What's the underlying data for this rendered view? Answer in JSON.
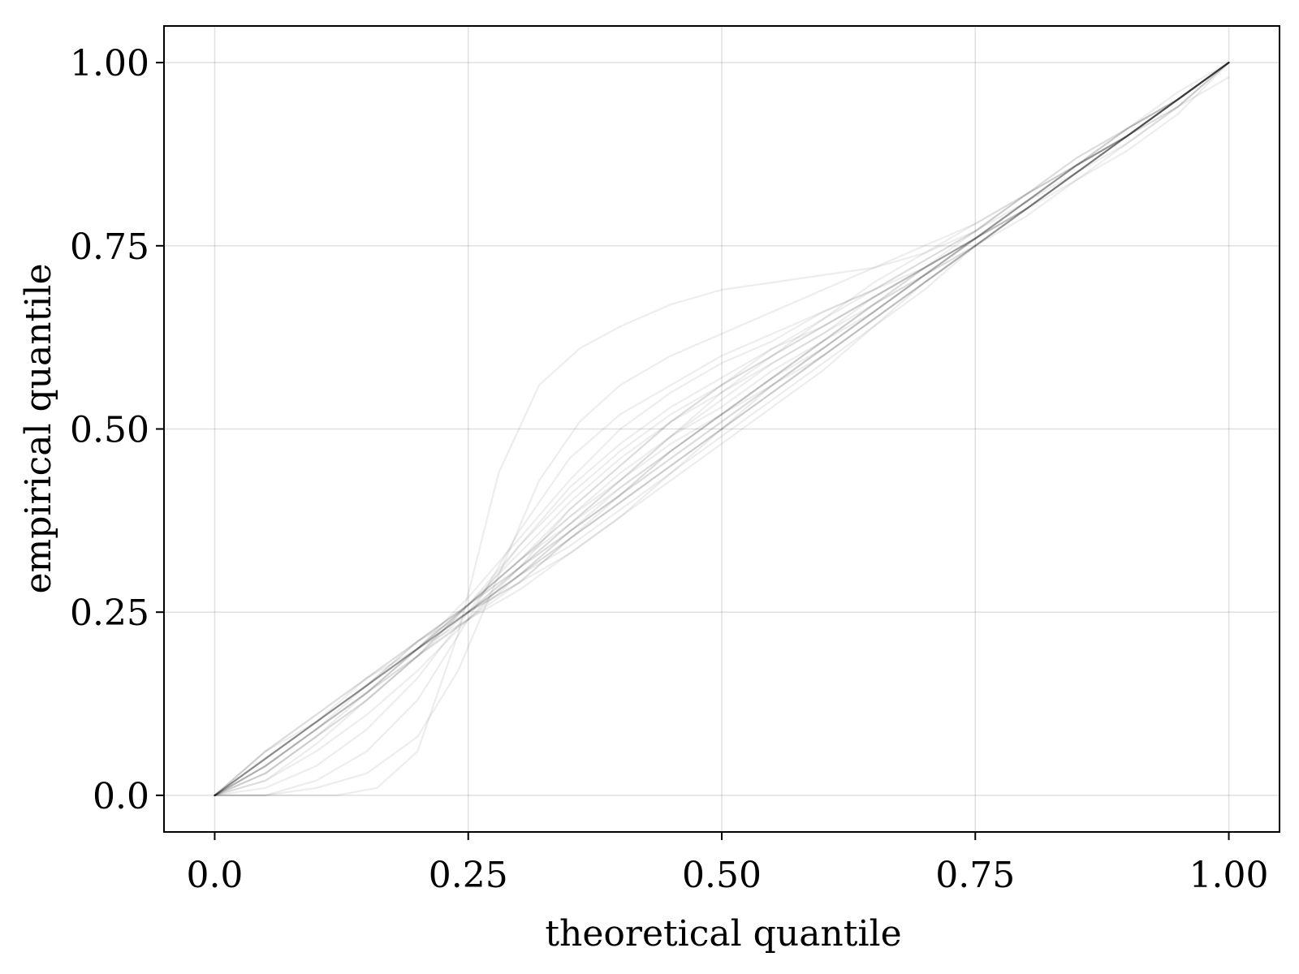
{
  "chart_data": {
    "type": "line",
    "title": "",
    "xlabel": "theoretical quantile",
    "ylabel": "empirical quantile",
    "xlim": [
      -0.05,
      1.05
    ],
    "ylim": [
      -0.05,
      1.05
    ],
    "x_ticks": [
      0.0,
      0.25,
      0.5,
      0.75,
      1.0
    ],
    "x_tick_labels": [
      "0.0",
      "0.25",
      "0.50",
      "0.75",
      "1.00"
    ],
    "y_ticks": [
      0.0,
      0.25,
      0.5,
      0.75,
      1.0
    ],
    "y_tick_labels": [
      "0.0",
      "0.25",
      "0.50",
      "0.75",
      "1.00"
    ],
    "grid": true,
    "line_color": "#000000",
    "line_opacity": 0.07,
    "series": [
      {
        "x": [
          0,
          0.05,
          0.1,
          0.15,
          0.2,
          0.25,
          0.3,
          0.35,
          0.4,
          0.45,
          0.5,
          0.55,
          0.6,
          0.65,
          0.7,
          0.75,
          0.8,
          0.85,
          0.9,
          0.95,
          1.0
        ],
        "y": [
          0,
          0.05,
          0.1,
          0.15,
          0.2,
          0.25,
          0.3,
          0.35,
          0.4,
          0.45,
          0.5,
          0.55,
          0.6,
          0.65,
          0.7,
          0.75,
          0.8,
          0.85,
          0.9,
          0.95,
          1.0
        ]
      },
      {
        "x": [
          0,
          0.05,
          0.1,
          0.15,
          0.2,
          0.25,
          0.3,
          0.35,
          0.4,
          0.45,
          0.5,
          0.55,
          0.6,
          0.65,
          0.7,
          0.75,
          0.8,
          0.85,
          0.9,
          0.95,
          1.0
        ],
        "y": [
          0,
          0.04,
          0.09,
          0.14,
          0.2,
          0.26,
          0.32,
          0.38,
          0.43,
          0.48,
          0.52,
          0.56,
          0.61,
          0.66,
          0.71,
          0.75,
          0.8,
          0.85,
          0.9,
          0.95,
          1.0
        ]
      },
      {
        "x": [
          0,
          0.05,
          0.1,
          0.15,
          0.2,
          0.25,
          0.3,
          0.35,
          0.4,
          0.45,
          0.5,
          0.55,
          0.6,
          0.65,
          0.7,
          0.75,
          0.8,
          0.85,
          0.9,
          0.95,
          1.0
        ],
        "y": [
          0,
          0.06,
          0.11,
          0.16,
          0.21,
          0.25,
          0.29,
          0.33,
          0.38,
          0.43,
          0.48,
          0.53,
          0.58,
          0.64,
          0.69,
          0.75,
          0.8,
          0.85,
          0.9,
          0.95,
          1.0
        ]
      },
      {
        "x": [
          0,
          0.05,
          0.1,
          0.15,
          0.2,
          0.25,
          0.3,
          0.35,
          0.4,
          0.45,
          0.5,
          0.55,
          0.6,
          0.65,
          0.7,
          0.75,
          0.8,
          0.85,
          0.9,
          0.95,
          1.0
        ],
        "y": [
          0,
          0.02,
          0.07,
          0.13,
          0.19,
          0.26,
          0.34,
          0.41,
          0.47,
          0.52,
          0.56,
          0.6,
          0.64,
          0.68,
          0.72,
          0.76,
          0.81,
          0.86,
          0.91,
          0.95,
          1.0
        ]
      },
      {
        "x": [
          0,
          0.05,
          0.1,
          0.15,
          0.2,
          0.25,
          0.3,
          0.35,
          0.4,
          0.45,
          0.5,
          0.55,
          0.6,
          0.65,
          0.7,
          0.75,
          0.8,
          0.85,
          0.9,
          0.95,
          1.0
        ],
        "y": [
          0,
          0.05,
          0.1,
          0.15,
          0.21,
          0.26,
          0.31,
          0.36,
          0.41,
          0.46,
          0.51,
          0.56,
          0.61,
          0.66,
          0.71,
          0.76,
          0.81,
          0.86,
          0.9,
          0.95,
          1.0
        ]
      },
      {
        "x": [
          0,
          0.05,
          0.1,
          0.15,
          0.2,
          0.25,
          0.3,
          0.35,
          0.4,
          0.45,
          0.5,
          0.55,
          0.6,
          0.65,
          0.7,
          0.75,
          0.8,
          0.85,
          0.9,
          0.95,
          1.0
        ],
        "y": [
          0,
          0.04,
          0.09,
          0.14,
          0.19,
          0.24,
          0.3,
          0.36,
          0.42,
          0.47,
          0.52,
          0.57,
          0.62,
          0.67,
          0.72,
          0.77,
          0.82,
          0.87,
          0.91,
          0.95,
          1.0
        ]
      },
      {
        "x": [
          0,
          0.05,
          0.1,
          0.15,
          0.2,
          0.25,
          0.3,
          0.35,
          0.4,
          0.45,
          0.5,
          0.55,
          0.6,
          0.65,
          0.7,
          0.75,
          0.8,
          0.85,
          0.9,
          0.95,
          1.0
        ],
        "y": [
          0,
          0.06,
          0.11,
          0.16,
          0.2,
          0.24,
          0.28,
          0.33,
          0.38,
          0.44,
          0.5,
          0.55,
          0.6,
          0.65,
          0.7,
          0.75,
          0.79,
          0.84,
          0.89,
          0.94,
          1.0
        ]
      },
      {
        "x": [
          0,
          0.05,
          0.1,
          0.15,
          0.2,
          0.25,
          0.3,
          0.35,
          0.4,
          0.45,
          0.5,
          0.55,
          0.6,
          0.65,
          0.7,
          0.75,
          0.8,
          0.85,
          0.9,
          0.95,
          1.0
        ],
        "y": [
          0,
          0.03,
          0.08,
          0.13,
          0.19,
          0.26,
          0.33,
          0.4,
          0.46,
          0.51,
          0.55,
          0.59,
          0.63,
          0.67,
          0.71,
          0.75,
          0.8,
          0.85,
          0.9,
          0.95,
          1.0
        ]
      },
      {
        "x": [
          0,
          0.05,
          0.1,
          0.15,
          0.2,
          0.25,
          0.3,
          0.35,
          0.4,
          0.45,
          0.5,
          0.55,
          0.6,
          0.65,
          0.7,
          0.75,
          0.8,
          0.85,
          0.9,
          0.95,
          1.0
        ],
        "y": [
          0,
          0.05,
          0.1,
          0.15,
          0.2,
          0.25,
          0.31,
          0.37,
          0.43,
          0.49,
          0.54,
          0.59,
          0.63,
          0.68,
          0.72,
          0.76,
          0.81,
          0.86,
          0.9,
          0.95,
          1.0
        ]
      },
      {
        "x": [
          0,
          0.05,
          0.1,
          0.15,
          0.2,
          0.25,
          0.3,
          0.35,
          0.4,
          0.45,
          0.5,
          0.55,
          0.6,
          0.65,
          0.7,
          0.75,
          0.8,
          0.85,
          0.9,
          0.95,
          1.0
        ],
        "y": [
          0,
          0.05,
          0.1,
          0.15,
          0.2,
          0.25,
          0.3,
          0.34,
          0.39,
          0.44,
          0.49,
          0.54,
          0.59,
          0.64,
          0.7,
          0.75,
          0.8,
          0.85,
          0.9,
          0.95,
          1.0
        ]
      },
      {
        "x": [
          0,
          0.05,
          0.1,
          0.15,
          0.2,
          0.25,
          0.3,
          0.35,
          0.4,
          0.45,
          0.5,
          0.55,
          0.6,
          0.65,
          0.7,
          0.75,
          0.8,
          0.85,
          0.9,
          0.95,
          1.0
        ],
        "y": [
          0,
          0.04,
          0.09,
          0.15,
          0.2,
          0.26,
          0.32,
          0.39,
          0.45,
          0.51,
          0.56,
          0.61,
          0.65,
          0.69,
          0.73,
          0.77,
          0.82,
          0.86,
          0.9,
          0.95,
          1.0
        ]
      },
      {
        "x": [
          0,
          0.05,
          0.1,
          0.15,
          0.2,
          0.25,
          0.3,
          0.35,
          0.4,
          0.45,
          0.5,
          0.55,
          0.6,
          0.65,
          0.7,
          0.75,
          0.8,
          0.85,
          0.9,
          0.95,
          1.0
        ],
        "y": [
          0,
          0.05,
          0.1,
          0.15,
          0.21,
          0.26,
          0.32,
          0.37,
          0.42,
          0.47,
          0.52,
          0.57,
          0.62,
          0.66,
          0.71,
          0.76,
          0.81,
          0.86,
          0.91,
          0.95,
          1.0
        ]
      },
      {
        "x": [
          0,
          0.05,
          0.1,
          0.15,
          0.2,
          0.25,
          0.3,
          0.35,
          0.4,
          0.45,
          0.5,
          0.55,
          0.6,
          0.65,
          0.7,
          0.75,
          0.8,
          0.85,
          0.9,
          0.95,
          1.0
        ],
        "y": [
          0,
          0.06,
          0.1,
          0.15,
          0.2,
          0.25,
          0.29,
          0.35,
          0.4,
          0.45,
          0.5,
          0.56,
          0.61,
          0.66,
          0.71,
          0.76,
          0.8,
          0.85,
          0.9,
          0.95,
          1.0
        ]
      },
      {
        "x": [
          0,
          0.05,
          0.1,
          0.15,
          0.2,
          0.25,
          0.3,
          0.35,
          0.4,
          0.45,
          0.5,
          0.55,
          0.6,
          0.65,
          0.7,
          0.75,
          0.8,
          0.85,
          0.9,
          0.95,
          1.0
        ],
        "y": [
          0,
          0.04,
          0.09,
          0.14,
          0.2,
          0.26,
          0.32,
          0.38,
          0.44,
          0.49,
          0.53,
          0.58,
          0.62,
          0.67,
          0.72,
          0.76,
          0.81,
          0.86,
          0.9,
          0.95,
          1.0
        ]
      },
      {
        "x": [
          0,
          0.05,
          0.1,
          0.15,
          0.2,
          0.25,
          0.3,
          0.35,
          0.4,
          0.45,
          0.5,
          0.55,
          0.6,
          0.65,
          0.7,
          0.75,
          0.8,
          0.85,
          0.9,
          0.95,
          1.0
        ],
        "y": [
          0,
          0.05,
          0.1,
          0.15,
          0.2,
          0.25,
          0.3,
          0.36,
          0.41,
          0.46,
          0.51,
          0.56,
          0.6,
          0.65,
          0.7,
          0.75,
          0.8,
          0.85,
          0.9,
          0.95,
          1.0
        ]
      },
      {
        "x": [
          0,
          0.05,
          0.1,
          0.15,
          0.2,
          0.25,
          0.3,
          0.35,
          0.4,
          0.45,
          0.5,
          0.55,
          0.6,
          0.65,
          0.7,
          0.75,
          0.8,
          0.85,
          0.9,
          0.95,
          1.0
        ],
        "y": [
          0,
          0.03,
          0.08,
          0.14,
          0.2,
          0.27,
          0.35,
          0.43,
          0.5,
          0.55,
          0.59,
          0.62,
          0.66,
          0.69,
          0.73,
          0.77,
          0.82,
          0.87,
          0.91,
          0.96,
          1.0
        ]
      },
      {
        "x": [
          0,
          0.05,
          0.1,
          0.15,
          0.2,
          0.25,
          0.3,
          0.35,
          0.4,
          0.45,
          0.5,
          0.55,
          0.6,
          0.65,
          0.7,
          0.75,
          0.8,
          0.85,
          0.9,
          0.95,
          1.0
        ],
        "y": [
          0,
          0.05,
          0.1,
          0.16,
          0.21,
          0.26,
          0.31,
          0.36,
          0.41,
          0.47,
          0.52,
          0.57,
          0.61,
          0.66,
          0.71,
          0.76,
          0.81,
          0.85,
          0.9,
          0.95,
          1.0
        ]
      },
      {
        "x": [
          0,
          0.05,
          0.1,
          0.15,
          0.2,
          0.25,
          0.3,
          0.35,
          0.4,
          0.45,
          0.5,
          0.55,
          0.6,
          0.65,
          0.7,
          0.75,
          0.8,
          0.85,
          0.9,
          0.95,
          1.0
        ],
        "y": [
          0,
          0.04,
          0.09,
          0.14,
          0.19,
          0.24,
          0.29,
          0.35,
          0.41,
          0.47,
          0.52,
          0.57,
          0.62,
          0.67,
          0.71,
          0.76,
          0.81,
          0.86,
          0.9,
          0.95,
          1.0
        ]
      },
      {
        "x": [
          0,
          0.04,
          0.08,
          0.12,
          0.16,
          0.2,
          0.24,
          0.28,
          0.32,
          0.36,
          0.4,
          0.45,
          0.5,
          0.55,
          0.6,
          0.65,
          0.7,
          0.75,
          0.8,
          0.85,
          0.9,
          0.95,
          1.0
        ],
        "y": [
          0,
          0.0,
          0.0,
          0.0,
          0.01,
          0.06,
          0.22,
          0.44,
          0.56,
          0.61,
          0.64,
          0.67,
          0.69,
          0.7,
          0.71,
          0.72,
          0.74,
          0.77,
          0.81,
          0.86,
          0.9,
          0.95,
          1.0
        ]
      },
      {
        "x": [
          0,
          0.05,
          0.1,
          0.15,
          0.2,
          0.24,
          0.28,
          0.32,
          0.36,
          0.4,
          0.45,
          0.5,
          0.55,
          0.6,
          0.65,
          0.7,
          0.75,
          0.8,
          0.85,
          0.9,
          0.95,
          1.0
        ],
        "y": [
          0,
          0.0,
          0.01,
          0.03,
          0.08,
          0.17,
          0.3,
          0.43,
          0.51,
          0.56,
          0.6,
          0.63,
          0.66,
          0.69,
          0.72,
          0.75,
          0.78,
          0.82,
          0.86,
          0.91,
          0.95,
          1.0
        ]
      },
      {
        "x": [
          0,
          0.05,
          0.1,
          0.15,
          0.2,
          0.25,
          0.3,
          0.35,
          0.4,
          0.45,
          0.5,
          0.55,
          0.6,
          0.65,
          0.7,
          0.75,
          0.8,
          0.85,
          0.9,
          0.95,
          1.0
        ],
        "y": [
          0,
          0.0,
          0.02,
          0.06,
          0.13,
          0.24,
          0.36,
          0.46,
          0.52,
          0.56,
          0.6,
          0.63,
          0.66,
          0.69,
          0.72,
          0.76,
          0.8,
          0.85,
          0.9,
          0.94,
          1.0
        ]
      },
      {
        "x": [
          0,
          0.05,
          0.1,
          0.15,
          0.2,
          0.25,
          0.3,
          0.35,
          0.4,
          0.45,
          0.5,
          0.55,
          0.6,
          0.65,
          0.7,
          0.75,
          0.8,
          0.85,
          0.9,
          0.95,
          1.0
        ],
        "y": [
          0,
          0.01,
          0.04,
          0.09,
          0.16,
          0.25,
          0.34,
          0.42,
          0.48,
          0.53,
          0.57,
          0.61,
          0.64,
          0.68,
          0.72,
          0.76,
          0.8,
          0.85,
          0.89,
          0.94,
          1.0
        ]
      },
      {
        "x": [
          0,
          0.05,
          0.1,
          0.15,
          0.2,
          0.25,
          0.3,
          0.35,
          0.4,
          0.45,
          0.5,
          0.55,
          0.6,
          0.65,
          0.7,
          0.75,
          0.8,
          0.85,
          0.9,
          0.95,
          1.0
        ],
        "y": [
          0,
          0.02,
          0.06,
          0.11,
          0.17,
          0.24,
          0.31,
          0.39,
          0.45,
          0.51,
          0.56,
          0.6,
          0.64,
          0.68,
          0.72,
          0.76,
          0.8,
          0.84,
          0.88,
          0.93,
          1.0
        ]
      },
      {
        "x": [
          0,
          0.05,
          0.1,
          0.15,
          0.2,
          0.25,
          0.3,
          0.35,
          0.4,
          0.45,
          0.5,
          0.55,
          0.6,
          0.65,
          0.7,
          0.75,
          0.8,
          0.85,
          0.9,
          0.95,
          1.0
        ],
        "y": [
          0,
          0.03,
          0.08,
          0.13,
          0.19,
          0.25,
          0.31,
          0.37,
          0.43,
          0.49,
          0.55,
          0.6,
          0.65,
          0.7,
          0.74,
          0.78,
          0.82,
          0.86,
          0.9,
          0.94,
          0.98
        ]
      },
      {
        "x": [
          0,
          0.05,
          0.1,
          0.15,
          0.2,
          0.25,
          0.3,
          0.35,
          0.4,
          0.45,
          0.5,
          0.55,
          0.6,
          0.65,
          0.7,
          0.75,
          0.8,
          0.85,
          0.9,
          0.95,
          1.0
        ],
        "y": [
          0,
          0.05,
          0.1,
          0.15,
          0.2,
          0.25,
          0.3,
          0.35,
          0.4,
          0.45,
          0.5,
          0.55,
          0.6,
          0.65,
          0.7,
          0.75,
          0.8,
          0.85,
          0.9,
          0.95,
          1.0
        ]
      }
    ]
  }
}
